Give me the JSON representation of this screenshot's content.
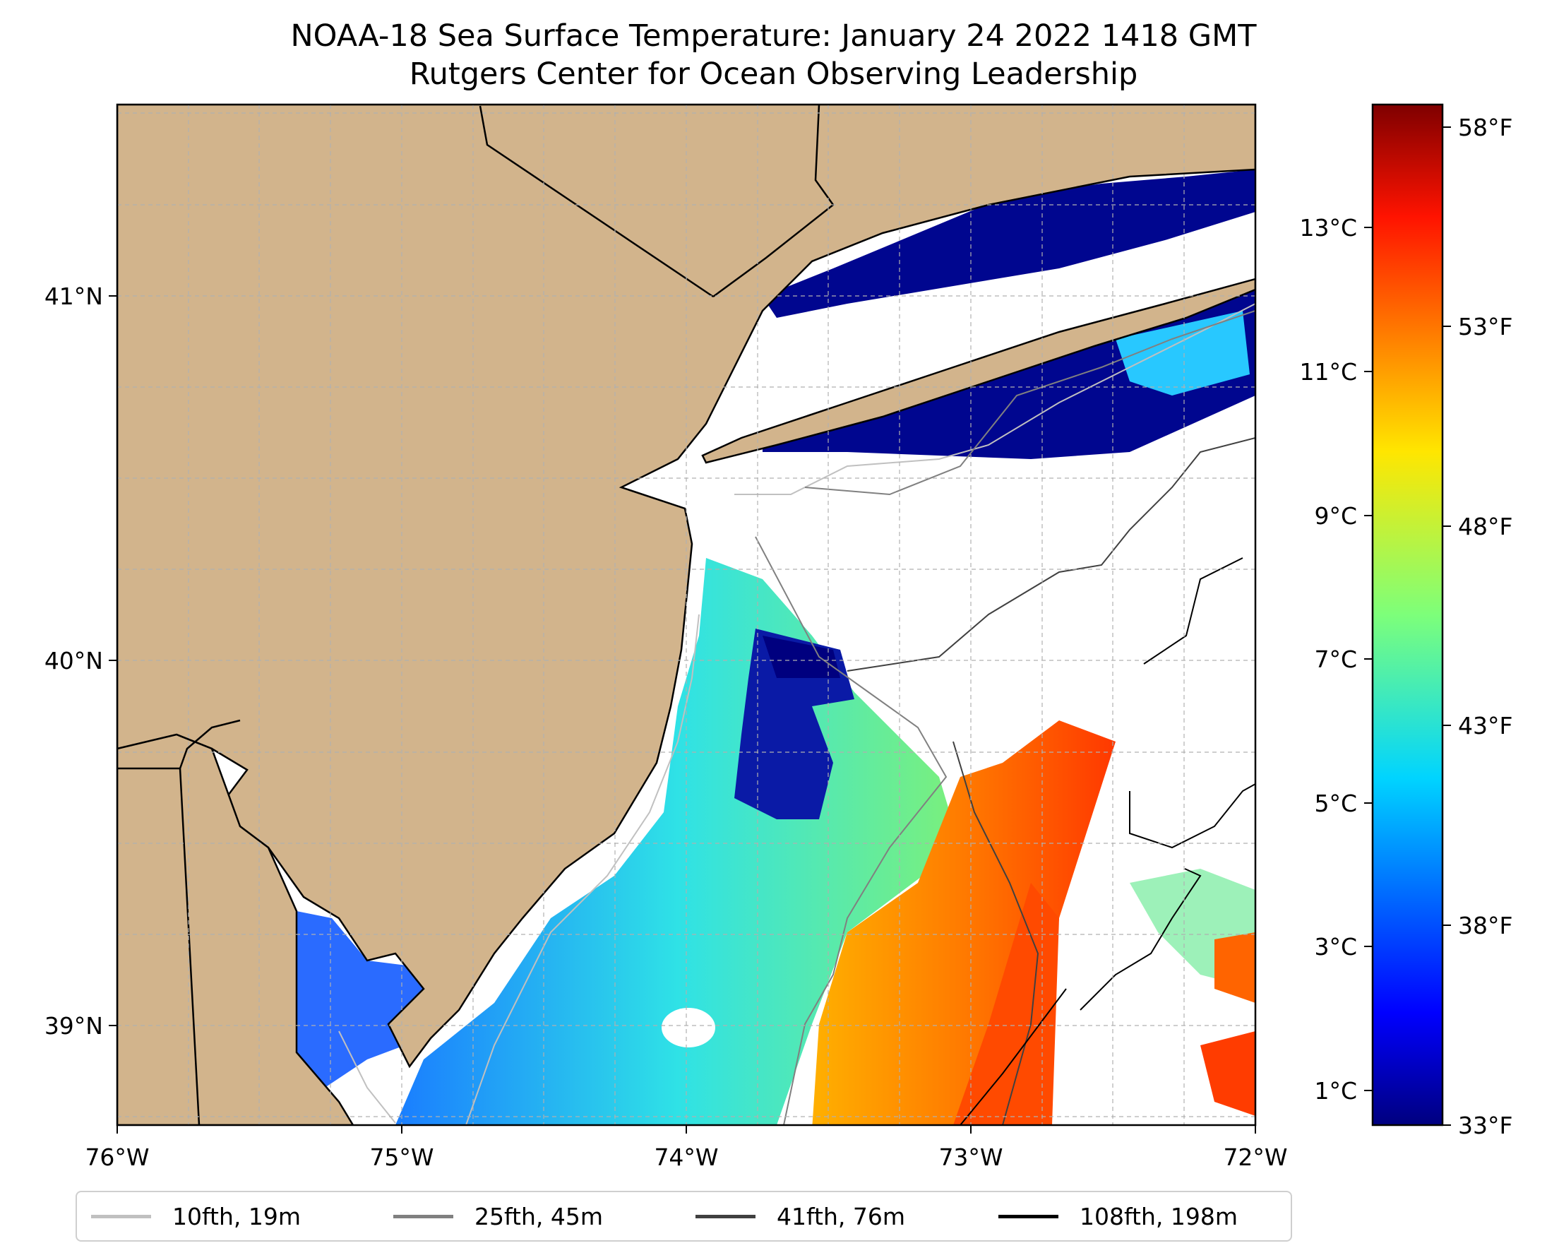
{
  "title": {
    "line1": "NOAA-18 Sea Surface Temperature: January 24 2022 1418 GMT",
    "line2": "Rutgers Center for Ocean Observing Leadership"
  },
  "map": {
    "lon_ticks": [
      "76°W",
      "75°W",
      "74°W",
      "73°W",
      "72°W"
    ],
    "lat_ticks": [
      "41°N",
      "40°N",
      "39°N"
    ],
    "colors": {
      "land": "#d2b48c",
      "coast": "#000000",
      "grid": "#b0b0b0"
    }
  },
  "colorbar": {
    "celsius_ticks": [
      "13°C",
      "11°C",
      "9°C",
      "7°C",
      "5°C",
      "3°C",
      "1°C"
    ],
    "fahrenheit_ticks": [
      "58°F",
      "53°F",
      "48°F",
      "43°F",
      "38°F",
      "33°F"
    ],
    "range_c": [
      0.6,
      14.8
    ],
    "colormap": "jet"
  },
  "legend": {
    "items": [
      {
        "label": "10fth, 19m",
        "color": "#c0c0c0"
      },
      {
        "label": "25fth, 45m",
        "color": "#808080"
      },
      {
        "label": "41fth, 76m",
        "color": "#404040"
      },
      {
        "label": "108fth, 198m",
        "color": "#000000"
      }
    ]
  }
}
